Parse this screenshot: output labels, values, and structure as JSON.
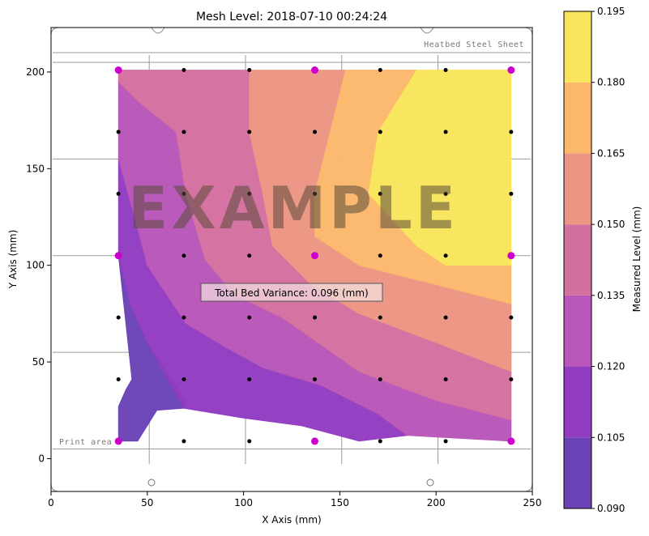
{
  "chart_data": {
    "type": "contour",
    "title": "Mesh Level: 2018-07-10 00:24:24",
    "xlabel": "X Axis (mm)",
    "ylabel": "Y Axis (mm)",
    "xlim": [
      0,
      250
    ],
    "ylim": [
      -17,
      223
    ],
    "xticks": [
      0,
      50,
      100,
      150,
      200,
      250
    ],
    "yticks": [
      0,
      50,
      100,
      150,
      200
    ],
    "colorbar": {
      "label": "Measured Level (mm)",
      "levels": [
        0.09,
        0.105,
        0.12,
        0.135,
        0.15,
        0.165,
        0.18,
        0.195
      ],
      "tick_labels": [
        "0.090",
        "0.105",
        "0.120",
        "0.135",
        "0.150",
        "0.165",
        "0.180",
        "0.195"
      ],
      "colors": [
        "#6a43b6",
        "#913cc1",
        "#b856b9",
        "#d4709f",
        "#ec9583",
        "#fbb86a",
        "#f9e55b"
      ]
    },
    "bed_labels": {
      "sheet": "Heatbed Steel Sheet",
      "print_area": "Print area"
    },
    "watermark": "EXAMPLE",
    "variance_text": "Total Bed Variance: 0.096 (mm)",
    "probe_grid": {
      "x": [
        35,
        69,
        103,
        137,
        171,
        205,
        239
      ],
      "y": [
        9,
        41,
        73,
        105,
        137,
        169,
        201
      ],
      "highlight": [
        [
          35,
          9
        ],
        [
          137,
          9
        ],
        [
          239,
          9
        ],
        [
          35,
          105
        ],
        [
          137,
          105
        ],
        [
          239,
          105
        ],
        [
          35,
          201
        ],
        [
          137,
          201
        ],
        [
          239,
          201
        ]
      ]
    },
    "contour_bands": [
      {
        "range": [
          0.09,
          0.105
        ],
        "polygon": [
          [
            35,
            9
          ],
          [
            35,
            27
          ],
          [
            39,
            36
          ],
          [
            42,
            41
          ],
          [
            35,
            105
          ],
          [
            41,
            80
          ],
          [
            50,
            60
          ],
          [
            70,
            30
          ],
          [
            69,
            26
          ],
          [
            55,
            25
          ],
          [
            45,
            9
          ]
        ]
      },
      {
        "range": [
          0.105,
          0.12
        ],
        "polygon": [
          [
            35,
            105
          ],
          [
            35,
            155
          ],
          [
            42,
            130
          ],
          [
            50,
            100
          ],
          [
            70,
            70
          ],
          [
            90,
            58
          ],
          [
            110,
            47
          ],
          [
            140,
            38
          ],
          [
            170,
            23
          ],
          [
            185,
            12
          ],
          [
            160,
            9
          ],
          [
            130,
            17
          ],
          [
            100,
            21
          ],
          [
            69,
            26
          ],
          [
            50,
            60
          ],
          [
            41,
            80
          ]
        ]
      },
      {
        "range": [
          0.12,
          0.135
        ],
        "polygon": [
          [
            35,
            155
          ],
          [
            35,
            195
          ],
          [
            45,
            185
          ],
          [
            65,
            169
          ],
          [
            70,
            137
          ],
          [
            80,
            103
          ],
          [
            95,
            85
          ],
          [
            120,
            73
          ],
          [
            160,
            45
          ],
          [
            200,
            30
          ],
          [
            239,
            20
          ],
          [
            239,
            9
          ],
          [
            185,
            12
          ],
          [
            170,
            23
          ],
          [
            140,
            38
          ],
          [
            110,
            47
          ],
          [
            90,
            58
          ],
          [
            70,
            70
          ],
          [
            50,
            100
          ],
          [
            42,
            130
          ]
        ]
      },
      {
        "range": [
          0.135,
          0.15
        ],
        "polygon": [
          [
            35,
            195
          ],
          [
            35,
            201
          ],
          [
            103,
            201
          ],
          [
            103,
            169
          ],
          [
            110,
            137
          ],
          [
            115,
            110
          ],
          [
            135,
            90
          ],
          [
            160,
            75
          ],
          [
            200,
            60
          ],
          [
            239,
            45
          ],
          [
            239,
            20
          ],
          [
            200,
            30
          ],
          [
            160,
            45
          ],
          [
            120,
            73
          ],
          [
            95,
            85
          ],
          [
            80,
            103
          ],
          [
            70,
            137
          ],
          [
            65,
            169
          ],
          [
            45,
            185
          ]
        ]
      },
      {
        "range": [
          0.15,
          0.165
        ],
        "polygon": [
          [
            103,
            201
          ],
          [
            153,
            201
          ],
          [
            145,
            169
          ],
          [
            137,
            137
          ],
          [
            137,
            115
          ],
          [
            160,
            100
          ],
          [
            200,
            90
          ],
          [
            239,
            80
          ],
          [
            239,
            45
          ],
          [
            200,
            60
          ],
          [
            160,
            75
          ],
          [
            135,
            90
          ],
          [
            115,
            110
          ],
          [
            110,
            137
          ],
          [
            103,
            169
          ]
        ]
      },
      {
        "range": [
          0.165,
          0.18
        ],
        "polygon": [
          [
            153,
            201
          ],
          [
            190,
            201
          ],
          [
            170,
            169
          ],
          [
            165,
            137
          ],
          [
            190,
            110
          ],
          [
            205,
            100
          ],
          [
            239,
            100
          ],
          [
            239,
            80
          ],
          [
            200,
            90
          ],
          [
            160,
            100
          ],
          [
            137,
            115
          ],
          [
            137,
            137
          ],
          [
            145,
            169
          ]
        ]
      },
      {
        "range": [
          0.18,
          0.195
        ],
        "polygon": [
          [
            190,
            201
          ],
          [
            239,
            201
          ],
          [
            239,
            100
          ],
          [
            205,
            100
          ],
          [
            190,
            110
          ],
          [
            165,
            137
          ],
          [
            170,
            169
          ]
        ]
      }
    ]
  }
}
